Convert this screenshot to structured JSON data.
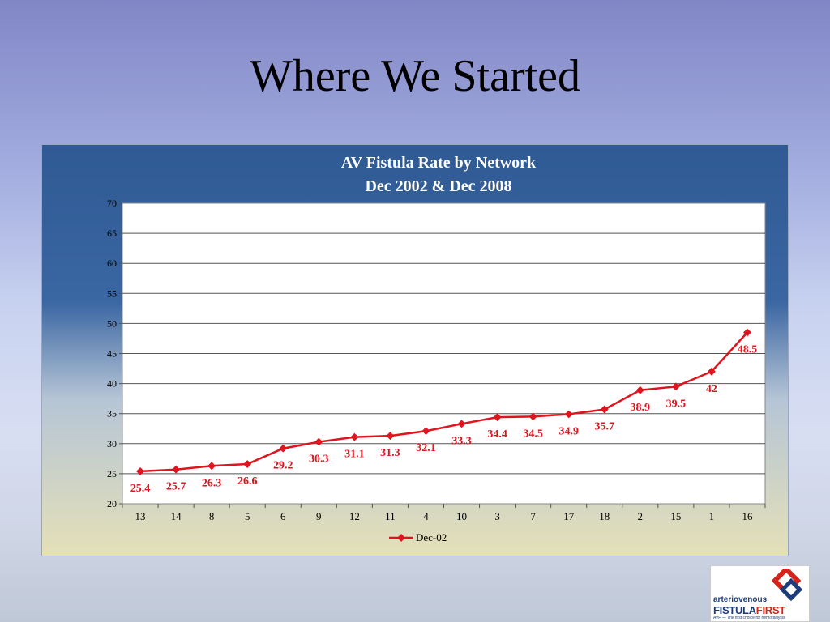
{
  "slide": {
    "title": "Where We Started"
  },
  "chart_data": {
    "type": "line",
    "title_lines": [
      "AV Fistula Rate by Network",
      "Dec 2002 & Dec 2008"
    ],
    "categories": [
      "13",
      "14",
      "8",
      "5",
      "6",
      "9",
      "12",
      "11",
      "4",
      "10",
      "3",
      "7",
      "17",
      "18",
      "2",
      "15",
      "1",
      "16"
    ],
    "series": [
      {
        "name": "Dec-02",
        "values": [
          25.4,
          25.7,
          26.3,
          26.6,
          29.2,
          30.3,
          31.1,
          31.3,
          32.1,
          33.3,
          34.4,
          34.5,
          34.9,
          35.7,
          38.9,
          39.5,
          42,
          48.5
        ],
        "color": "#e0141e"
      }
    ],
    "data_labels": [
      "25.4",
      "25.7",
      "26.3",
      "26.6",
      "29.2",
      "30.3",
      "31.1",
      "31.3",
      "32.1",
      "33.3",
      "34.4",
      "34.5",
      "34.9",
      "35.7",
      "38.9",
      "39.5",
      "42",
      "48.5"
    ],
    "yticks": [
      20,
      25,
      30,
      35,
      40,
      45,
      50,
      55,
      60,
      65,
      70
    ],
    "ylim": [
      20,
      70
    ],
    "grid": true,
    "legend_position": "bottom",
    "xlabel": "",
    "ylabel": ""
  },
  "logo": {
    "line1": "arteriovenous",
    "line2a": "FISTULA",
    "line2b": "FIRST",
    "tagline": "AVF — The first choice for hemodialysis"
  }
}
